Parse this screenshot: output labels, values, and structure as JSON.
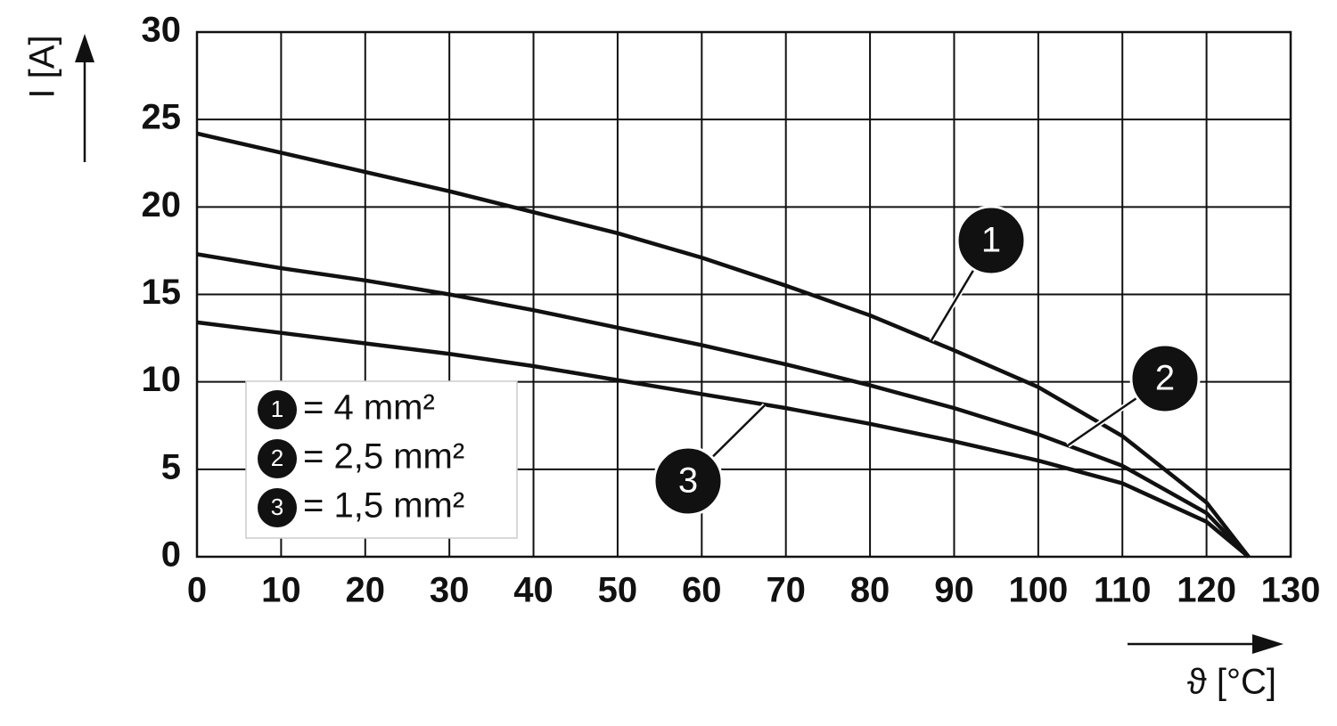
{
  "chart_data": {
    "type": "line",
    "y_label": "I [A]",
    "x_label": "ϑ [°C]",
    "xlim": [
      0,
      130
    ],
    "ylim": [
      0,
      30
    ],
    "xticks": [
      0,
      10,
      20,
      30,
      40,
      50,
      60,
      70,
      80,
      90,
      100,
      110,
      120,
      130
    ],
    "yticks": [
      0,
      5,
      10,
      15,
      20,
      25,
      30
    ],
    "grid": true,
    "x": [
      0,
      10,
      20,
      30,
      40,
      50,
      60,
      70,
      80,
      90,
      100,
      110,
      120,
      125
    ],
    "series": [
      {
        "label": "1",
        "name": "= 4 mm²",
        "color": "#111111",
        "values": [
          24.2,
          23.1,
          22.0,
          20.9,
          19.7,
          18.5,
          17.1,
          15.5,
          13.8,
          11.8,
          9.7,
          6.9,
          3.1,
          0
        ]
      },
      {
        "label": "2",
        "name": "= 2,5 mm²",
        "color": "#111111",
        "values": [
          17.3,
          16.5,
          15.8,
          15.0,
          14.1,
          13.1,
          12.1,
          11.0,
          9.8,
          8.5,
          7.0,
          5.2,
          2.5,
          0
        ]
      },
      {
        "label": "3",
        "name": "= 1,5 mm²",
        "color": "#111111",
        "values": [
          13.4,
          12.8,
          12.2,
          11.6,
          10.9,
          10.1,
          9.3,
          8.5,
          7.6,
          6.6,
          5.5,
          4.2,
          2.0,
          0
        ]
      }
    ]
  }
}
